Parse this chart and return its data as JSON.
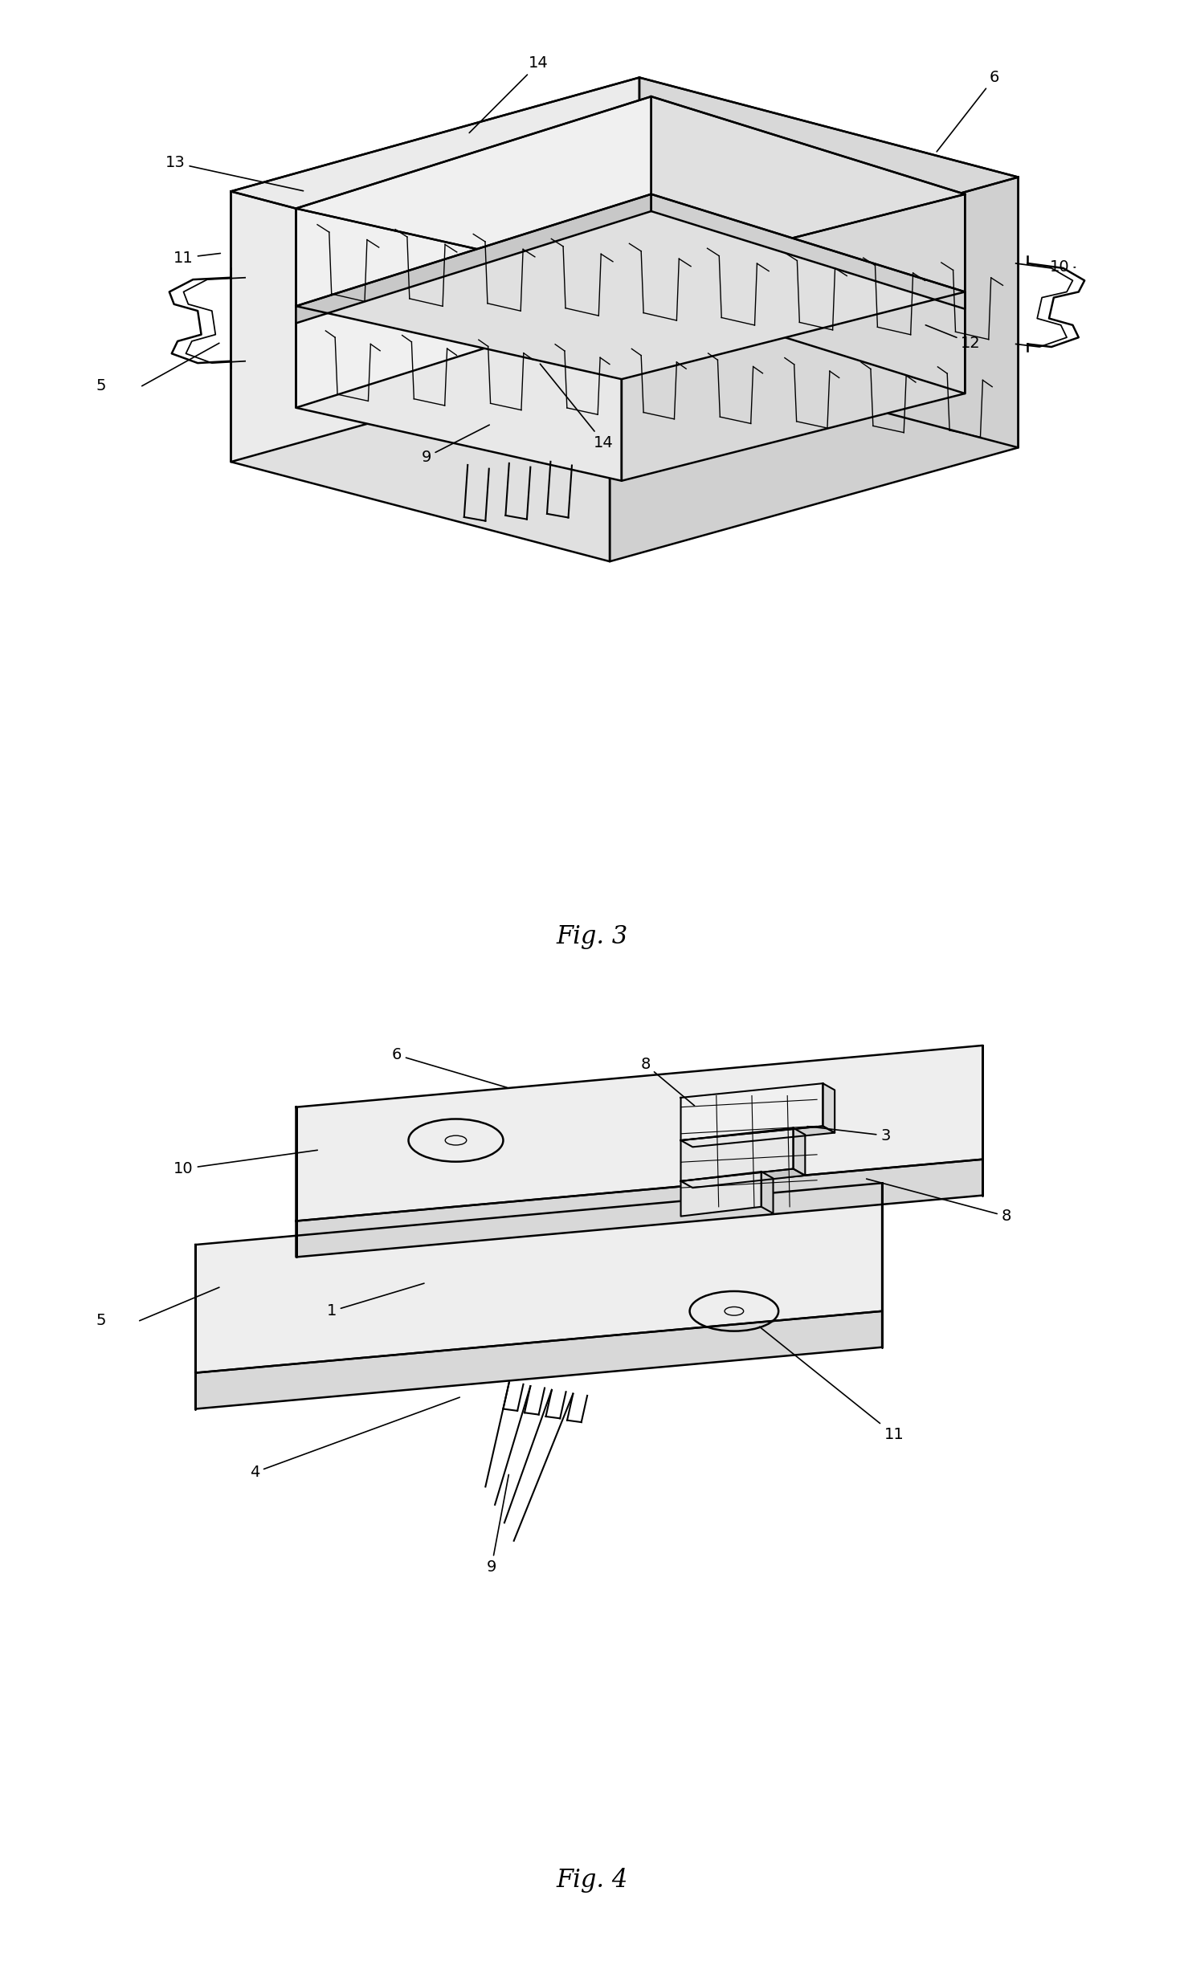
{
  "fig_width": 14.74,
  "fig_height": 24.62,
  "dpi": 100,
  "bg_color": "#ffffff",
  "line_color": "#000000",
  "line_width": 1.8,
  "fig3_title": "Fig. 3",
  "fig4_title": "Fig. 4",
  "title_fontsize": 22
}
